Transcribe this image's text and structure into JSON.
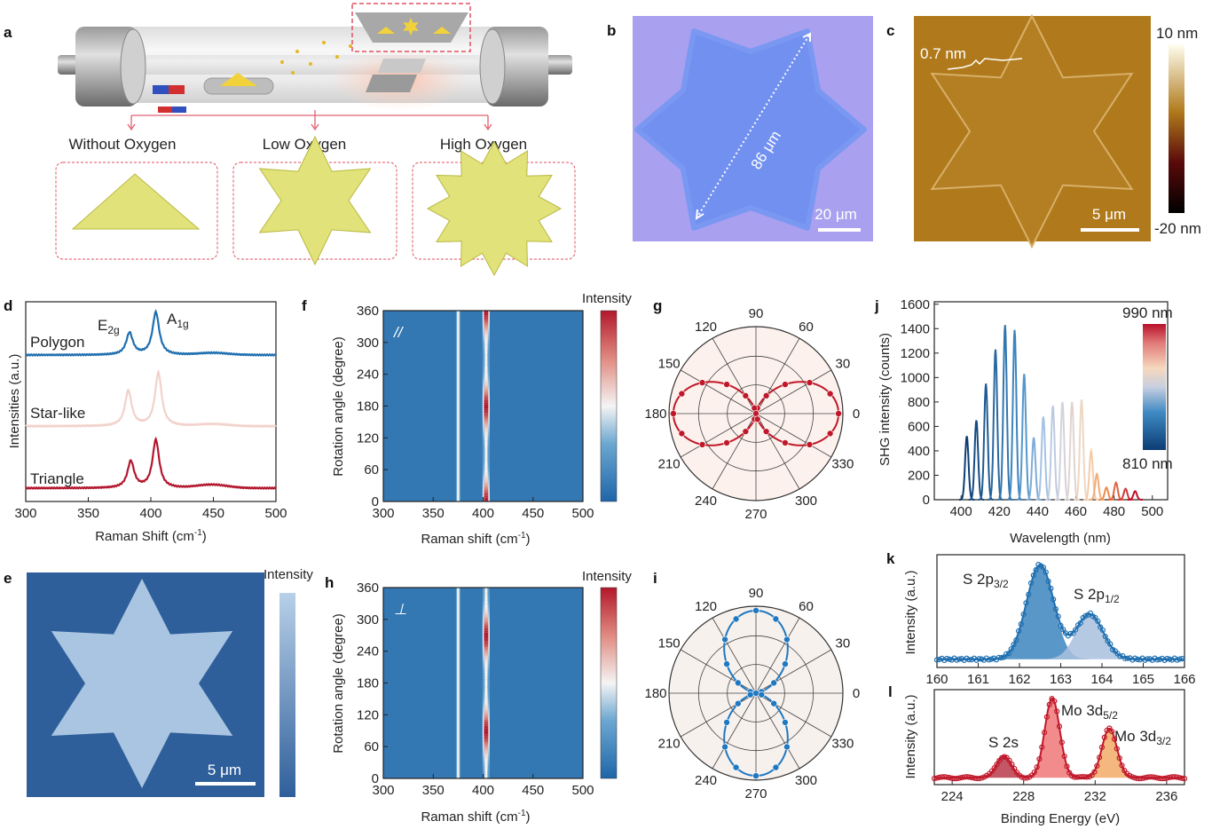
{
  "panel_labels": {
    "a": "a",
    "b": "b",
    "c": "c",
    "d": "d",
    "e": "e",
    "f": "f",
    "g": "g",
    "h": "h",
    "i": "i",
    "j": "j",
    "k": "k",
    "l": "l"
  },
  "panel_a": {
    "conditions": [
      "Without Oxygen",
      "Low Oxygen",
      "High Oxygen"
    ],
    "crystal_color": "#e2e27a",
    "arrow_color": "#e06070"
  },
  "panel_b": {
    "length_label": "86 μm",
    "scale_label": "20 μm",
    "background_color": "#a9a0f0",
    "flake_color": "#7190f0"
  },
  "panel_c": {
    "height_label": "0.7 nm",
    "scale_label": "5 μm",
    "colorbar_max": "10 nm",
    "colorbar_min": "-20 nm",
    "background_color": "#b07a1c"
  },
  "panel_e": {
    "colorbar_label": "Intensity",
    "scale_label": "5 μm",
    "background_color": "#2f5f9a",
    "flake_color": "#a9c5e2"
  },
  "chart_data": [
    {
      "panel": "d",
      "type": "line",
      "xlabel": {
        "main": "Raman Shift (cm",
        "sup": "-1",
        "end": ")"
      },
      "ylabel": "Intensities (a.u.)",
      "xlim": [
        300,
        500
      ],
      "xticks": [
        300,
        350,
        400,
        450,
        500
      ],
      "ylim": [
        -0.2,
        2.8
      ],
      "peak_labels": [
        {
          "main": "E",
          "sub": "2g"
        },
        {
          "main": "A",
          "sub": "1g"
        }
      ],
      "series": [
        {
          "name": "Polygon",
          "color": "#1f6fb0",
          "offset": 2.0,
          "peaks": [
            {
              "x": 383,
              "h": 0.33
            },
            {
              "x": 404,
              "h": 0.64
            },
            {
              "x": 450,
              "h": 0.03
            }
          ]
        },
        {
          "name": "Star-like",
          "color": "#f2d2ca",
          "offset": 0.93,
          "peaks": [
            {
              "x": 382,
              "h": 0.53
            },
            {
              "x": 406,
              "h": 0.8
            },
            {
              "x": 450,
              "h": 0.03
            }
          ]
        },
        {
          "name": "Triangle",
          "color": "#b3172e",
          "offset": 0.0,
          "peaks": [
            {
              "x": 384,
              "h": 0.4
            },
            {
              "x": 404,
              "h": 0.72
            },
            {
              "x": 449,
              "h": 0.05
            }
          ]
        }
      ]
    },
    {
      "panel": "f",
      "type": "heatmap",
      "polarization": "//",
      "xlabel": {
        "main": "Raman shift (cm",
        "sup": "-1",
        "end": ")"
      },
      "ylabel": "Rotation angle (degree)",
      "xlim": [
        300,
        500
      ],
      "xticks": [
        300,
        350,
        400,
        450,
        500
      ],
      "ylim": [
        0,
        360
      ],
      "yticks": [
        0,
        60,
        120,
        180,
        240,
        300,
        360
      ],
      "colorbar_label": "Intensity",
      "constant_mode": 375,
      "angle_mode": 403,
      "angle_dependence": "cos^2"
    },
    {
      "panel": "g",
      "type": "scatter",
      "subtype": "polar",
      "color": "#c0182a",
      "angle_labels": [
        "0",
        "30",
        "60",
        "90",
        "120",
        "150",
        "180",
        "210",
        "240",
        "270",
        "300",
        "330"
      ],
      "angles": [
        0,
        15,
        30,
        45,
        60,
        75,
        90,
        105,
        120,
        135,
        150,
        165,
        180,
        195,
        210,
        225,
        240,
        255,
        270,
        285,
        300,
        315,
        330,
        345
      ],
      "values": [
        1,
        0.93,
        0.75,
        0.5,
        0.25,
        0.07,
        0,
        0.07,
        0.25,
        0.5,
        0.75,
        0.93,
        1,
        0.93,
        0.75,
        0.5,
        0.25,
        0.07,
        0,
        0.07,
        0.25,
        0.5,
        0.75,
        0.93
      ]
    },
    {
      "panel": "h",
      "type": "heatmap",
      "polarization": "⊥",
      "xlabel": {
        "main": "Raman shift (cm",
        "sup": "-1",
        "end": ")"
      },
      "ylabel": "Rotation angle (degree)",
      "xlim": [
        300,
        500
      ],
      "xticks": [
        300,
        350,
        400,
        450,
        500
      ],
      "ylim": [
        0,
        360
      ],
      "yticks": [
        0,
        60,
        120,
        180,
        240,
        300,
        360
      ],
      "colorbar_label": "Intensity",
      "constant_mode": 375,
      "angle_mode": 403,
      "angle_dependence": "sin^2"
    },
    {
      "panel": "i",
      "type": "scatter",
      "subtype": "polar",
      "color": "#1f78c0",
      "angle_labels": [
        "0",
        "30",
        "60",
        "90",
        "120",
        "150",
        "180",
        "210",
        "240",
        "270",
        "300",
        "330"
      ],
      "angles": [
        0,
        15,
        30,
        45,
        60,
        75,
        90,
        105,
        120,
        135,
        150,
        165,
        180,
        195,
        210,
        225,
        240,
        255,
        270,
        285,
        300,
        315,
        330,
        345
      ],
      "values": [
        0,
        0.07,
        0.25,
        0.5,
        0.75,
        0.93,
        1,
        0.93,
        0.75,
        0.5,
        0.25,
        0.07,
        0,
        0.07,
        0.25,
        0.5,
        0.75,
        0.93,
        1,
        0.93,
        0.75,
        0.5,
        0.25,
        0.07
      ]
    },
    {
      "panel": "j",
      "type": "line",
      "xlabel": "Wavelength (nm)",
      "ylabel": "SHG intensity (counts)",
      "xlim": [
        386,
        508
      ],
      "xticks": [
        400,
        420,
        440,
        460,
        480,
        500
      ],
      "ylim": [
        0,
        1620
      ],
      "yticks": [
        0,
        200,
        400,
        600,
        800,
        1000,
        1200,
        1400,
        1600
      ],
      "colorbar_max": "990 nm",
      "colorbar_min": "810 nm",
      "peaks_nm": [
        403,
        408,
        413,
        418,
        423,
        428,
        433,
        438,
        443,
        448,
        453,
        458,
        463,
        468,
        471,
        476,
        481,
        486,
        491
      ],
      "peak_counts": [
        520,
        650,
        950,
        1230,
        1430,
        1390,
        1030,
        510,
        680,
        770,
        800,
        800,
        820,
        400,
        210,
        100,
        140,
        90,
        70
      ]
    },
    {
      "panel": "k",
      "type": "area",
      "ylabel": "Intensity (a.u.)",
      "xlim": [
        160,
        166
      ],
      "xticks": [
        160,
        161,
        162,
        163,
        164,
        165,
        166
      ],
      "ylim": [
        0,
        1.1
      ],
      "components": [
        {
          "label": {
            "main": "S 2p",
            "sub": "3/2"
          },
          "center": 162.5,
          "height": 0.92,
          "color": "#3d85c0"
        },
        {
          "label": {
            "main": "S 2p",
            "sub": "1/2"
          },
          "center": 163.7,
          "height": 0.44,
          "color": "#a9c0de"
        }
      ],
      "data_color": "#1f6fb0"
    },
    {
      "panel": "l",
      "type": "area",
      "xlabel": "Binding Energy (eV)",
      "ylabel": "Intensity (a.u.)",
      "xlim": [
        223,
        237
      ],
      "xticks": [
        224,
        228,
        232,
        236
      ],
      "ylim": [
        0,
        1.1
      ],
      "components": [
        {
          "label": {
            "main": "S 2s",
            "sub": ""
          },
          "center": 226.9,
          "height": 0.25,
          "color": "#b8394a"
        },
        {
          "label": {
            "main": "Mo 3d",
            "sub": "5/2"
          },
          "center": 229.6,
          "height": 0.92,
          "color": "#f07878"
        },
        {
          "label": {
            "main": "Mo 3d",
            "sub": "3/2"
          },
          "center": 232.8,
          "height": 0.57,
          "color": "#f2aa66"
        }
      ],
      "data_color": "#c0182a"
    }
  ]
}
